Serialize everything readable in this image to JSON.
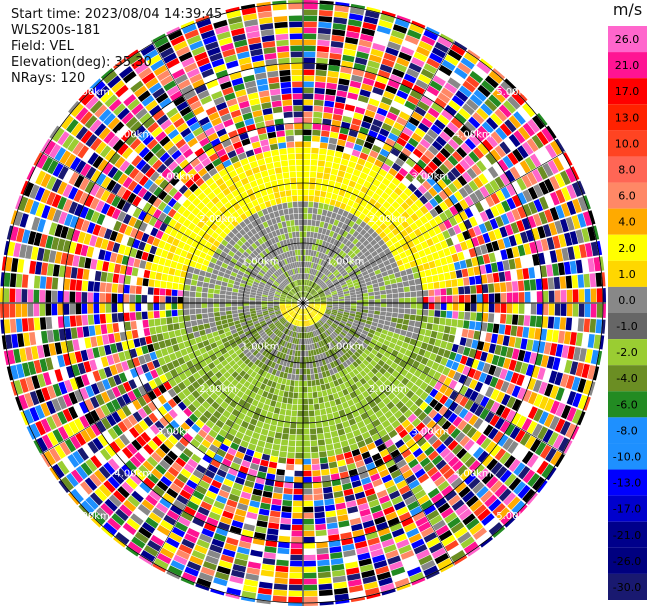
{
  "info": {
    "start_time": "Start time: 2023/08/04 14:39:45",
    "instrument": "WLS200s-181",
    "field": "Field: VEL",
    "elevation": "Elevation(deg): 35.30",
    "nrays": "NRays: 120"
  },
  "colorbar": {
    "unit": "m/s",
    "ticks": [
      "26.0",
      "21.0",
      "17.0",
      "13.0",
      "10.0",
      "8.0",
      "6.0",
      "4.0",
      "2.0",
      "1.0",
      "0.0",
      "-1.0",
      "-2.0",
      "-4.0",
      "-6.0",
      "-8.0",
      "-10.0",
      "-13.0",
      "-17.0",
      "-21.0",
      "-26.0",
      "-30.0"
    ],
    "colors": [
      "#ff66cc",
      "#ff1493",
      "#ff0000",
      "#ff2200",
      "#ff4422",
      "#ff6655",
      "#ff8866",
      "#ffaa00",
      "#ffff00",
      "#ffd700",
      "#888888",
      "#666666",
      "#9acd32",
      "#6b8e23",
      "#228b22",
      "#1e90ff",
      "#1e90ff",
      "#0000ff",
      "#0000cd",
      "#00008b",
      "#000080",
      "#191970"
    ]
  },
  "range_labels": {
    "r1": "1.00km",
    "r2": "2.00km",
    "r3": "3.00km",
    "r4": "4.00km",
    "r5": "5.00km"
  },
  "chart_data": {
    "type": "heatmap",
    "title": "",
    "field": "VEL",
    "units": "m/s",
    "range_rings_km": [
      1,
      2,
      3,
      4,
      5
    ],
    "nrays": 120,
    "elevation_deg": 35.3,
    "color_scale": {
      "ticks": [
        26.0,
        21.0,
        17.0,
        13.0,
        10.0,
        8.0,
        6.0,
        4.0,
        2.0,
        1.0,
        0.0,
        -1.0,
        -2.0,
        -4.0,
        -6.0,
        -8.0,
        -10.0,
        -13.0,
        -17.0,
        -21.0,
        -26.0,
        -30.0
      ]
    },
    "pattern_description": "near-field: grey (~0 m/s) with green (-2 to -4 m/s) to south and yellow (2-4 m/s) to north; beyond ~2.5 km mostly noisy multicolor"
  }
}
